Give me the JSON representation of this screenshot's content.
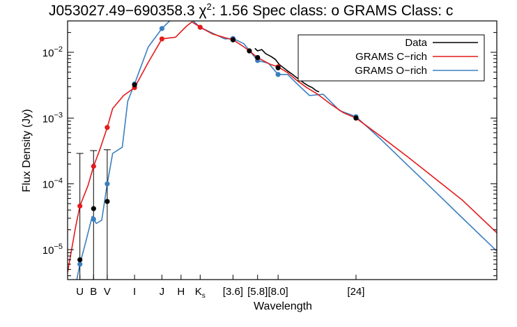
{
  "chart_data": {
    "type": "line",
    "title": {
      "object": "J053027.49−690358.3",
      "chi_symbol": "χ",
      "chi_exp": "2",
      "chi_value": ": 1.56",
      "spec_class": "Spec class: o GRAMS Class: c"
    },
    "xlabel": "Wavelength",
    "ylabel": "Flux Density (Jy)",
    "y_scale": "log",
    "ylim": [
      3.5e-06,
      0.03
    ],
    "x_ticks": [
      {
        "label": "U",
        "x": 0.0
      },
      {
        "label": "B",
        "x": 1.0
      },
      {
        "label": "V",
        "x": 2.0
      },
      {
        "label": "I",
        "x": 4.0
      },
      {
        "label": "J",
        "x": 6.0
      },
      {
        "label": "H",
        "x": 7.4
      },
      {
        "label": "K",
        "sub": "s",
        "x": 8.8
      },
      {
        "label": "[3.6]",
        "x": 11.2
      },
      {
        "label": "[5.8]",
        "x": 13.0
      },
      {
        "label": "[8.0]",
        "x": 14.5
      },
      {
        "label": "[24]",
        "x": 20.2
      }
    ],
    "y_ticks": [
      {
        "base": "10",
        "exp": "−2",
        "value": 0.01
      },
      {
        "base": "10",
        "exp": "−3",
        "value": 0.001
      },
      {
        "base": "10",
        "exp": "−4",
        "value": 0.0001
      },
      {
        "base": "10",
        "exp": "−5",
        "value": 1e-05
      }
    ],
    "xlim": [
      -0.9,
      30.5
    ],
    "legend": {
      "position": "top-right",
      "entries": [
        {
          "label": "Data",
          "color": "#000000"
        },
        {
          "label": "GRAMS C−rich",
          "color": "#e41a1c"
        },
        {
          "label": "GRAMS O−rich",
          "color": "#3a7fbf"
        }
      ]
    },
    "series": [
      {
        "name": "GRAMS C−rich",
        "color": "#e41a1c",
        "line": [
          [
            -0.9,
            4.5e-06
          ],
          [
            -0.3,
            2.3e-05
          ],
          [
            0.0,
            4.6e-05
          ],
          [
            0.6,
            9.5e-05
          ],
          [
            1.0,
            0.000185
          ],
          [
            1.5,
            0.00035
          ],
          [
            2.0,
            0.00072
          ],
          [
            2.4,
            0.0014
          ],
          [
            3.2,
            0.0022
          ],
          [
            4.0,
            0.0029
          ],
          [
            5.0,
            0.007
          ],
          [
            6.0,
            0.016
          ],
          [
            7.0,
            0.017
          ],
          [
            7.8,
            0.025
          ],
          [
            8.2,
            0.029
          ],
          [
            8.8,
            0.024
          ],
          [
            9.7,
            0.019
          ],
          [
            10.7,
            0.0165
          ],
          [
            11.2,
            0.0155
          ],
          [
            11.9,
            0.0125
          ],
          [
            12.4,
            0.0105
          ],
          [
            13.0,
            0.0083
          ],
          [
            13.9,
            0.0066
          ],
          [
            14.5,
            0.006
          ],
          [
            15.2,
            0.0049
          ],
          [
            15.9,
            0.0037
          ],
          [
            16.6,
            0.0029
          ],
          [
            17.4,
            0.0023
          ],
          [
            18.4,
            0.0016
          ],
          [
            19.3,
            0.0012
          ],
          [
            20.2,
            0.001
          ],
          [
            22.0,
            0.00053
          ],
          [
            24.0,
            0.000255
          ],
          [
            26.0,
            0.00012
          ],
          [
            28.0,
            5.6e-05
          ],
          [
            30.5,
            1.8e-05
          ]
        ],
        "points": [
          [
            0.0,
            4.6e-05
          ],
          [
            1.0,
            0.000185
          ],
          [
            2.0,
            0.00072
          ],
          [
            4.0,
            0.0029
          ],
          [
            6.0,
            0.016
          ],
          [
            8.8,
            0.024
          ],
          [
            11.2,
            0.0155
          ],
          [
            12.4,
            0.0105
          ],
          [
            13.0,
            0.0083
          ],
          [
            14.5,
            0.006
          ],
          [
            20.2,
            0.001
          ]
        ]
      },
      {
        "name": "GRAMS O−rich",
        "color": "#3a7fbf",
        "line": [
          [
            -0.9,
            1.6e-06
          ],
          [
            -0.4,
            2.3e-06
          ],
          [
            0.0,
            6e-06
          ],
          [
            0.5,
            1.5e-05
          ],
          [
            0.9,
            3.2e-05
          ],
          [
            1.2,
            2.5e-05
          ],
          [
            1.6,
            2.8e-05
          ],
          [
            2.0,
            0.0001
          ],
          [
            2.4,
            0.00029
          ],
          [
            3.1,
            0.00036
          ],
          [
            3.5,
            0.0018
          ],
          [
            4.0,
            0.0033
          ],
          [
            5.0,
            0.012
          ],
          [
            6.0,
            0.023
          ],
          [
            6.7,
            0.032
          ],
          [
            7.3,
            0.04
          ],
          [
            8.0,
            0.034
          ],
          [
            8.8,
            0.024
          ],
          [
            9.6,
            0.02
          ],
          [
            10.6,
            0.016
          ],
          [
            11.2,
            0.0162
          ],
          [
            12.0,
            0.0135
          ],
          [
            12.5,
            0.01
          ],
          [
            13.0,
            0.0075
          ],
          [
            13.8,
            0.0068
          ],
          [
            14.5,
            0.0046
          ],
          [
            15.2,
            0.0046
          ],
          [
            15.9,
            0.0033
          ],
          [
            16.8,
            0.0022
          ],
          [
            17.8,
            0.0023
          ],
          [
            19.0,
            0.0013
          ],
          [
            20.2,
            0.00105
          ],
          [
            22.0,
            0.00048
          ],
          [
            24.0,
            0.00019
          ],
          [
            26.0,
            7.6e-05
          ],
          [
            28.0,
            3e-05
          ],
          [
            30.5,
            9.5e-06
          ]
        ],
        "points": [
          [
            0.0,
            6e-06
          ],
          [
            1.0,
            2.9e-05
          ],
          [
            2.0,
            0.0001
          ],
          [
            4.0,
            0.0033
          ],
          [
            6.0,
            0.023
          ],
          [
            11.2,
            0.0162
          ],
          [
            13.0,
            0.0075
          ],
          [
            14.5,
            0.0046
          ],
          [
            20.2,
            0.00105
          ]
        ]
      },
      {
        "name": "Data",
        "color": "#000000",
        "line": [
          [
            12.8,
            0.0115
          ],
          [
            13.0,
            0.0105
          ],
          [
            13.3,
            0.011
          ],
          [
            13.6,
            0.0095
          ],
          [
            14.0,
            0.0086
          ],
          [
            14.3,
            0.0078
          ],
          [
            14.6,
            0.0065
          ],
          [
            14.9,
            0.0058
          ],
          [
            15.2,
            0.0052
          ],
          [
            15.5,
            0.0047
          ],
          [
            15.8,
            0.0042
          ],
          [
            16.1,
            0.0038
          ],
          [
            16.4,
            0.0034
          ],
          [
            16.7,
            0.0031
          ],
          [
            17.0,
            0.0029
          ],
          [
            17.3,
            0.0026
          ],
          [
            17.5,
            0.0025
          ]
        ],
        "points": [
          [
            0.0,
            7e-06
          ],
          [
            1.0,
            4.2e-05
          ],
          [
            2.0,
            5.4e-05
          ],
          [
            4.0,
            0.0032
          ],
          [
            11.2,
            0.0155
          ],
          [
            12.4,
            0.0105
          ],
          [
            13.0,
            0.0083
          ],
          [
            14.5,
            0.0058
          ],
          [
            20.2,
            0.001
          ]
        ],
        "error_bars": [
          {
            "x": 0.0,
            "low": 3.5e-06,
            "high": 0.00029
          },
          {
            "x": 1.0,
            "low": 3.5e-06,
            "high": 0.00032
          },
          {
            "x": 2.0,
            "low": 3.5e-06,
            "high": 0.00033
          }
        ]
      }
    ]
  }
}
